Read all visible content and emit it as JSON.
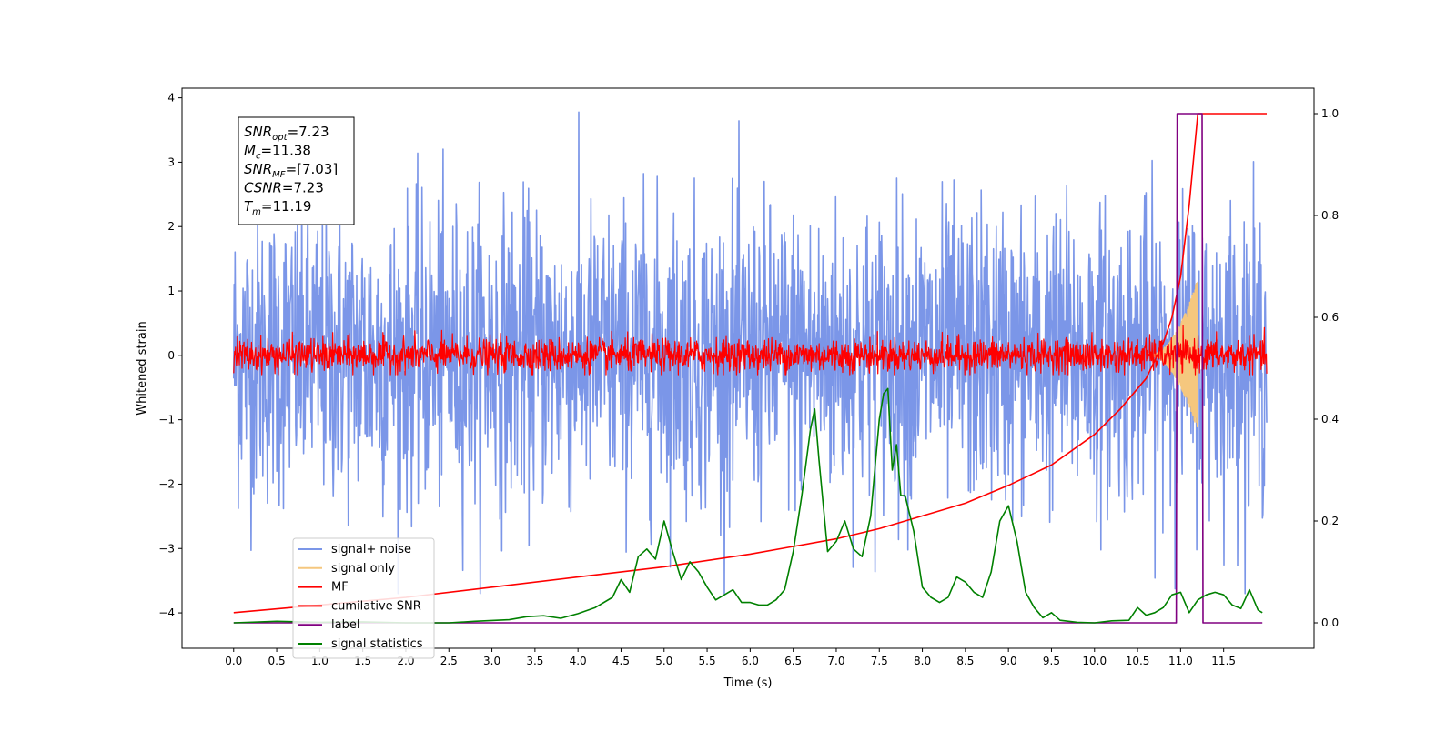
{
  "chart_data": {
    "type": "line",
    "xlabel": "Time (s)",
    "ylabel": "Whitened strain",
    "ylabel_right": "",
    "xlim": [
      -0.6,
      12.55
    ],
    "ylim": [
      -4.55,
      4.15
    ],
    "ylim_right": [
      -0.05,
      1.05
    ],
    "xticks": [
      "0.0",
      "0.5",
      "1.0",
      "1.5",
      "2.0",
      "2.5",
      "3.0",
      "3.5",
      "4.0",
      "4.5",
      "5.0",
      "5.5",
      "6.0",
      "6.5",
      "7.0",
      "7.5",
      "8.0",
      "8.5",
      "9.0",
      "9.5",
      "10.0",
      "10.5",
      "11.0",
      "11.5"
    ],
    "yticks": [
      "4",
      "3",
      "2",
      "1",
      "0",
      "−1",
      "−2",
      "−3",
      "−4"
    ],
    "yticks_right": [
      "1.0",
      "0.8",
      "0.6",
      "0.4",
      "0.2",
      "0.0"
    ],
    "grid": false,
    "legend_position": "lower-left",
    "annotation": {
      "lines": [
        {
          "name": "SNR",
          "sub": "opt",
          "value": "=7.23"
        },
        {
          "name": "M",
          "sub": "c",
          "value": "=11.38"
        },
        {
          "name": "SNR",
          "sub": "MF",
          "value": "=[7.03]"
        },
        {
          "name": "CSNR",
          "sub": "",
          "value": "=7.23"
        },
        {
          "name": "T",
          "sub": "m",
          "value": "=11.19"
        }
      ]
    },
    "series": [
      {
        "name": "signal+ noise",
        "color": "#7b96e8",
        "axis": "left",
        "kind": "noise",
        "x_range": [
          0.0,
          12.0
        ],
        "amplitude_range": [
          -3.7,
          3.8
        ]
      },
      {
        "name": "signal only",
        "color": "#f5c77e",
        "axis": "left",
        "kind": "chirp",
        "x_range": [
          10.6,
          11.2
        ],
        "peak_amplitude": 1.2
      },
      {
        "name": "MF",
        "color": "#ff0000",
        "axis": "left",
        "kind": "noise",
        "x_range": [
          0.0,
          12.0
        ],
        "amplitude_range": [
          -0.3,
          0.55
        ]
      },
      {
        "name": "cumilative SNR",
        "color": "#ff0000",
        "axis": "right",
        "x": [
          0.0,
          1.0,
          2.0,
          3.0,
          4.0,
          5.0,
          6.0,
          6.5,
          7.0,
          7.5,
          8.0,
          8.5,
          9.0,
          9.5,
          10.0,
          10.3,
          10.6,
          10.8,
          10.9,
          11.0,
          11.1,
          11.2,
          11.3,
          12.0
        ],
        "y": [
          0.02,
          0.035,
          0.05,
          0.07,
          0.09,
          0.11,
          0.135,
          0.15,
          0.165,
          0.185,
          0.21,
          0.235,
          0.27,
          0.31,
          0.37,
          0.42,
          0.48,
          0.55,
          0.6,
          0.68,
          0.82,
          1.0,
          1.0,
          1.0
        ]
      },
      {
        "name": "label",
        "color": "#800080",
        "axis": "right",
        "x": [
          0.0,
          10.95,
          10.96,
          11.25,
          11.26,
          11.95
        ],
        "y": [
          0.0,
          0.0,
          1.0,
          1.0,
          0.0,
          0.0
        ]
      },
      {
        "name": "signal statistics",
        "color": "#008000",
        "axis": "right",
        "x": [
          0.0,
          0.5,
          1.0,
          1.5,
          2.0,
          2.5,
          2.8,
          3.2,
          3.4,
          3.6,
          3.8,
          4.0,
          4.2,
          4.4,
          4.5,
          4.6,
          4.7,
          4.8,
          4.9,
          5.0,
          5.1,
          5.2,
          5.3,
          5.4,
          5.5,
          5.6,
          5.7,
          5.8,
          5.9,
          6.0,
          6.1,
          6.2,
          6.3,
          6.4,
          6.5,
          6.6,
          6.7,
          6.75,
          6.8,
          6.9,
          7.0,
          7.1,
          7.2,
          7.3,
          7.4,
          7.5,
          7.55,
          7.6,
          7.65,
          7.7,
          7.75,
          7.8,
          7.9,
          8.0,
          8.1,
          8.2,
          8.3,
          8.4,
          8.5,
          8.6,
          8.7,
          8.8,
          8.9,
          9.0,
          9.1,
          9.2,
          9.3,
          9.4,
          9.5,
          9.6,
          9.8,
          10.0,
          10.2,
          10.4,
          10.5,
          10.6,
          10.7,
          10.8,
          10.9,
          11.0,
          11.1,
          11.2,
          11.3,
          11.4,
          11.5,
          11.6,
          11.7,
          11.8,
          11.9,
          11.95
        ],
        "y": [
          0.0,
          0.003,
          0.001,
          0.002,
          0.0,
          0.0,
          0.003,
          0.006,
          0.012,
          0.014,
          0.009,
          0.018,
          0.03,
          0.05,
          0.085,
          0.06,
          0.13,
          0.145,
          0.125,
          0.2,
          0.14,
          0.085,
          0.12,
          0.1,
          0.07,
          0.045,
          0.055,
          0.065,
          0.04,
          0.04,
          0.035,
          0.035,
          0.045,
          0.065,
          0.14,
          0.25,
          0.38,
          0.42,
          0.32,
          0.14,
          0.16,
          0.2,
          0.145,
          0.13,
          0.21,
          0.4,
          0.45,
          0.46,
          0.3,
          0.35,
          0.25,
          0.25,
          0.18,
          0.07,
          0.05,
          0.04,
          0.05,
          0.09,
          0.08,
          0.06,
          0.05,
          0.1,
          0.2,
          0.23,
          0.16,
          0.06,
          0.03,
          0.01,
          0.02,
          0.005,
          0.001,
          0.0,
          0.004,
          0.005,
          0.03,
          0.015,
          0.02,
          0.03,
          0.055,
          0.06,
          0.02,
          0.045,
          0.055,
          0.06,
          0.055,
          0.035,
          0.028,
          0.065,
          0.025,
          0.02
        ]
      }
    ]
  }
}
